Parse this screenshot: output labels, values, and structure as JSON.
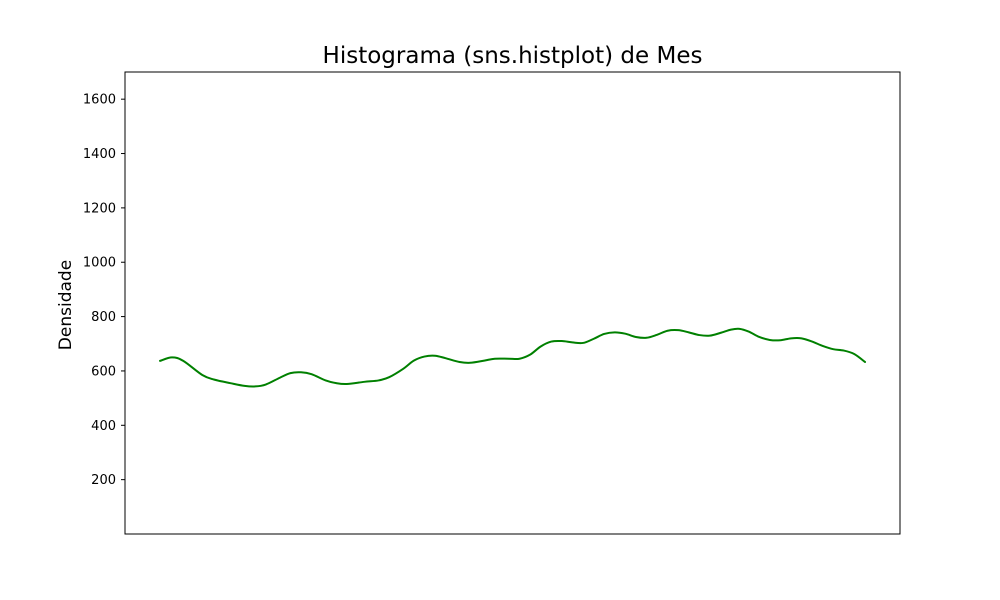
{
  "chart_data": {
    "type": "line",
    "title": "Histograma (sns.histplot) de Mes",
    "xlabel": "",
    "ylabel": "Densidade",
    "ylim": [
      0,
      1700
    ],
    "yticks": [
      200,
      400,
      600,
      800,
      1000,
      1200,
      1400,
      1600
    ],
    "xticks_visible": false,
    "grid": false,
    "series": [
      {
        "color": "#008000",
        "points": [
          [
            0.0,
            637
          ],
          [
            0.017,
            650
          ],
          [
            0.033,
            637
          ],
          [
            0.06,
            585
          ],
          [
            0.077,
            568
          ],
          [
            0.1,
            555
          ],
          [
            0.12,
            545
          ],
          [
            0.135,
            543
          ],
          [
            0.15,
            550
          ],
          [
            0.17,
            575
          ],
          [
            0.185,
            592
          ],
          [
            0.2,
            595
          ],
          [
            0.215,
            588
          ],
          [
            0.235,
            565
          ],
          [
            0.25,
            555
          ],
          [
            0.265,
            552
          ],
          [
            0.29,
            560
          ],
          [
            0.31,
            565
          ],
          [
            0.325,
            577
          ],
          [
            0.345,
            608
          ],
          [
            0.36,
            638
          ],
          [
            0.375,
            653
          ],
          [
            0.39,
            656
          ],
          [
            0.405,
            647
          ],
          [
            0.425,
            633
          ],
          [
            0.44,
            630
          ],
          [
            0.46,
            638
          ],
          [
            0.475,
            645
          ],
          [
            0.495,
            645
          ],
          [
            0.51,
            645
          ],
          [
            0.525,
            660
          ],
          [
            0.54,
            690
          ],
          [
            0.555,
            708
          ],
          [
            0.57,
            710
          ],
          [
            0.585,
            705
          ],
          [
            0.6,
            703
          ],
          [
            0.615,
            718
          ],
          [
            0.63,
            736
          ],
          [
            0.645,
            742
          ],
          [
            0.66,
            737
          ],
          [
            0.675,
            725
          ],
          [
            0.69,
            722
          ],
          [
            0.705,
            733
          ],
          [
            0.72,
            748
          ],
          [
            0.735,
            750
          ],
          [
            0.75,
            742
          ],
          [
            0.765,
            732
          ],
          [
            0.78,
            730
          ],
          [
            0.795,
            740
          ],
          [
            0.81,
            752
          ],
          [
            0.822,
            755
          ],
          [
            0.835,
            745
          ],
          [
            0.85,
            725
          ],
          [
            0.865,
            714
          ],
          [
            0.88,
            713
          ],
          [
            0.895,
            720
          ],
          [
            0.91,
            720
          ],
          [
            0.925,
            708
          ],
          [
            0.94,
            692
          ],
          [
            0.955,
            680
          ],
          [
            0.97,
            675
          ],
          [
            0.985,
            662
          ],
          [
            1.0,
            633
          ]
        ]
      }
    ]
  }
}
